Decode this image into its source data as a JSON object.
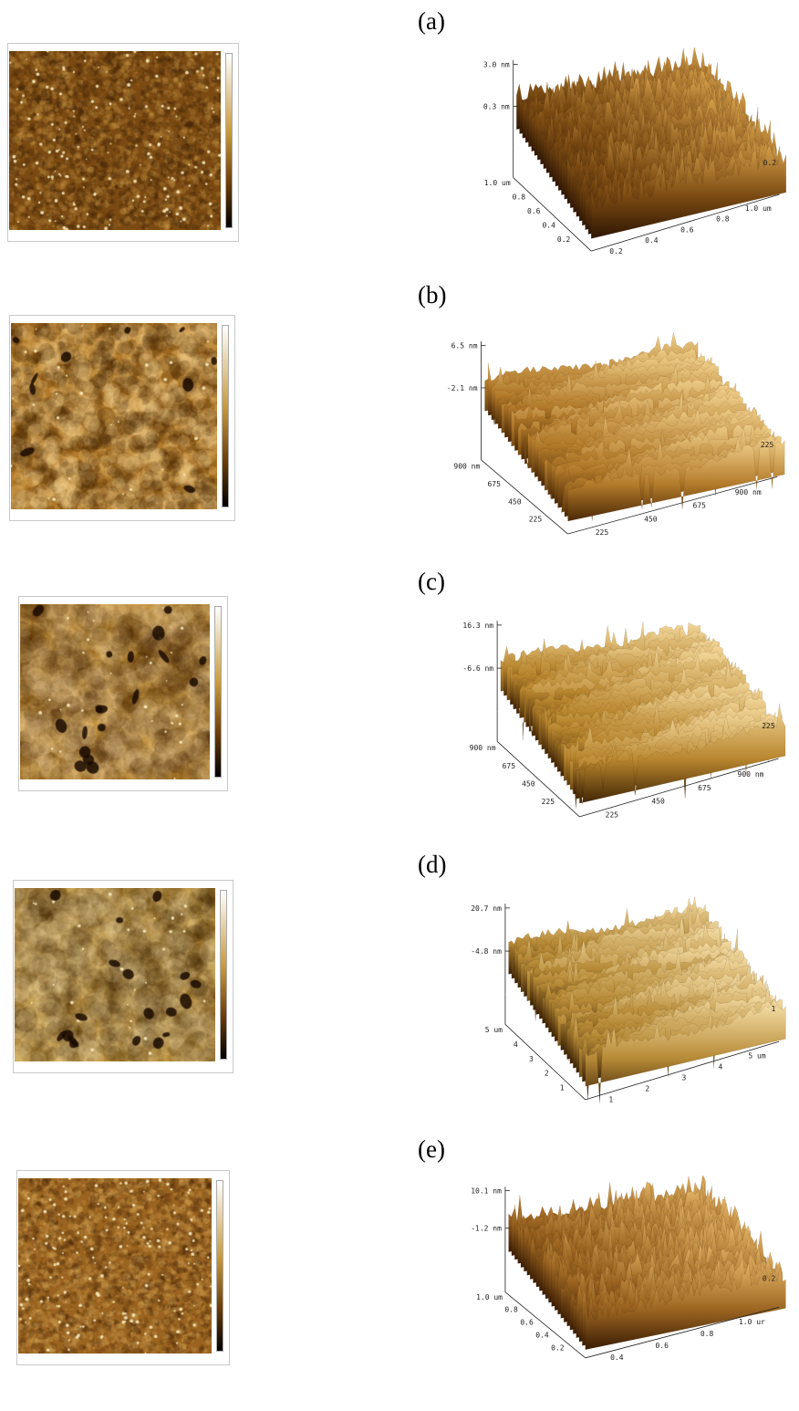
{
  "panels": [
    {
      "label": "(a)",
      "z_labels": [
        "3.0 nm",
        "0.3 nm"
      ],
      "left_axis": [
        "1.0 um",
        "0.8",
        "0.6",
        "0.4",
        "0.2"
      ],
      "bottom_axis": [
        "0.2",
        "0.4",
        "0.6",
        "0.8",
        "1.0 um"
      ],
      "right_axis": [
        "0.2"
      ],
      "colors": {
        "base": "#7a4a12",
        "light": "#d8a24c",
        "dark": "#2e1604"
      },
      "roughness": "fine-spikes"
    },
    {
      "label": "(b)",
      "z_labels": [
        "6.5 nm",
        "-2.1 nm"
      ],
      "left_axis": [
        "900 nm",
        "675",
        "450",
        "225"
      ],
      "bottom_axis": [
        "225",
        "450",
        "675",
        "900 nm"
      ],
      "right_axis": [
        "225"
      ],
      "colors": {
        "base": "#b27a2a",
        "light": "#f0cf8a",
        "dark": "#4a2806"
      },
      "roughness": "grainy"
    },
    {
      "label": "(c)",
      "z_labels": [
        "16.3 nm",
        "-6.6 nm"
      ],
      "left_axis": [
        "900 nm",
        "675",
        "450",
        "225"
      ],
      "bottom_axis": [
        "225",
        "450",
        "675",
        "900 nm"
      ],
      "right_axis": [
        "225"
      ],
      "colors": {
        "base": "#b8862e",
        "light": "#f3d79a",
        "dark": "#3e2204"
      },
      "roughness": "smooth-pits"
    },
    {
      "label": "(d)",
      "z_labels": [
        "20.7 nm",
        "-4.8 nm"
      ],
      "left_axis": [
        "5 um",
        "4",
        "3",
        "2",
        "1"
      ],
      "bottom_axis": [
        "1",
        "2",
        "3",
        "4",
        "5 um"
      ],
      "right_axis": [
        "1"
      ],
      "colors": {
        "base": "#b68a36",
        "light": "#f4dca4",
        "dark": "#3a2004"
      },
      "roughness": "smooth-pits"
    },
    {
      "label": "(e)",
      "z_labels": [
        "10.1 nm",
        "-1.2 nm"
      ],
      "left_axis": [
        "1.0 um",
        "0.8",
        "0.6",
        "0.4",
        "0.2"
      ],
      "bottom_axis": [
        "0.4",
        "0.6",
        "0.8",
        "1.0 ur"
      ],
      "right_axis": [
        "0.2"
      ],
      "colors": {
        "base": "#9a6420",
        "light": "#e4b466",
        "dark": "#3a1c04"
      },
      "roughness": "fine-spikes"
    }
  ]
}
